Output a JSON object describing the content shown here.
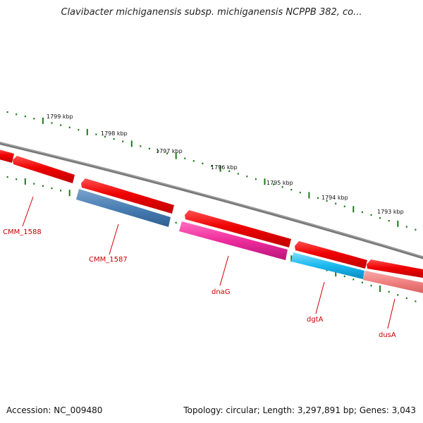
{
  "header": {
    "title": "Clavibacter michiganensis subsp. michiganensis NCPPB 382, co..."
  },
  "footer": {
    "accession": "Accession: NC_009480",
    "summary": "Topology: circular; Length: 3,297,891 bp; Genes: 3,043"
  },
  "map": {
    "kbp_labels": [
      "1799 kbp",
      "1798 kbp",
      "1797 kbp",
      "1796 kbp",
      "1795 kbp",
      "1794 kbp",
      "1793 kbp"
    ],
    "genes": [
      {
        "name": "CMM_1588",
        "color": "#4a7fb5"
      },
      {
        "name": "CMM_1587",
        "color": "#4a7fb5"
      },
      {
        "name": "dnaG",
        "color": "#ee2c9c"
      },
      {
        "name": "dgtA",
        "color": "#1ab8ef"
      },
      {
        "name": "dusA",
        "color": "#f08080"
      }
    ],
    "colors": {
      "backbone": "#888888",
      "forward_cds": "#ff0000",
      "tick": "#1a7a1a",
      "label": "#cc0000"
    }
  }
}
